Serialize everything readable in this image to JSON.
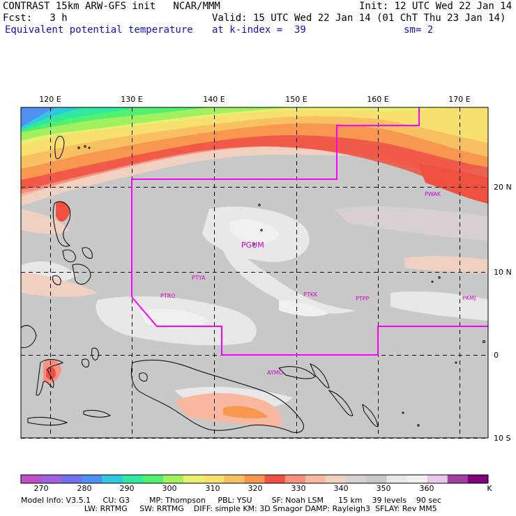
{
  "header": {
    "line1_left": "CONTRAST 15km ARW-GFS init   NCAR/MMM",
    "line1_right": "Init: 12 UTC Wed 22 Jan 14",
    "line2_left": "Fcst:   3 h",
    "line2_right": "Valid: 15 UTC Wed 22 Jan 14 (01 ChT Thu 23 Jan 14)",
    "line3_left": "Equivalent potential temperature",
    "line3_mid": "at k-index =  39",
    "line3_right": "sm= 2"
  },
  "map": {
    "lon_labels": [
      "120 E",
      "130 E",
      "140 E",
      "150 E",
      "160 E",
      "170 E"
    ],
    "lat_labels": [
      "20 N",
      "10 N",
      "0",
      "10 S"
    ],
    "stations": [
      "PGUM",
      "PTYA",
      "PTRO",
      "PTKK",
      "PTPP",
      "PKMJ",
      "PWAK",
      "AYMO"
    ],
    "colors": {
      "land_outline": "#000000",
      "domain_boundary": "#ff00ff",
      "station_label": "#d000d0",
      "grid": "#000000"
    }
  },
  "colorbar": {
    "labels": [
      "270",
      "280",
      "290",
      "300",
      "310",
      "320",
      "330",
      "340",
      "350",
      "360",
      "K"
    ],
    "colors": [
      "#c050c8",
      "#a060e0",
      "#7070f0",
      "#5090f0",
      "#30c8e0",
      "#30e8a0",
      "#50f070",
      "#a0f060",
      "#e8f070",
      "#f8e070",
      "#f8c060",
      "#f89850",
      "#f05040",
      "#f89080",
      "#f8b8a0",
      "#f0d0c0",
      "#d8d0d0",
      "#c8c8c8",
      "#e8e8e8",
      "#f0f0f0",
      "#e8c8e8",
      "#a040a0",
      "#800080"
    ]
  },
  "footer": {
    "line1": "Model Info: V3.5.1     CU: G3        MP: Thompson     PBL: YSU        SF: Noah LSM      15 km    39 levels    90 sec",
    "line2": "                          LW: RRTMG     SW: RRTMG    DIFF: simple KM: 3D Smagor DAMP: Rayleigh3  SFLAY: Rev MM5"
  }
}
